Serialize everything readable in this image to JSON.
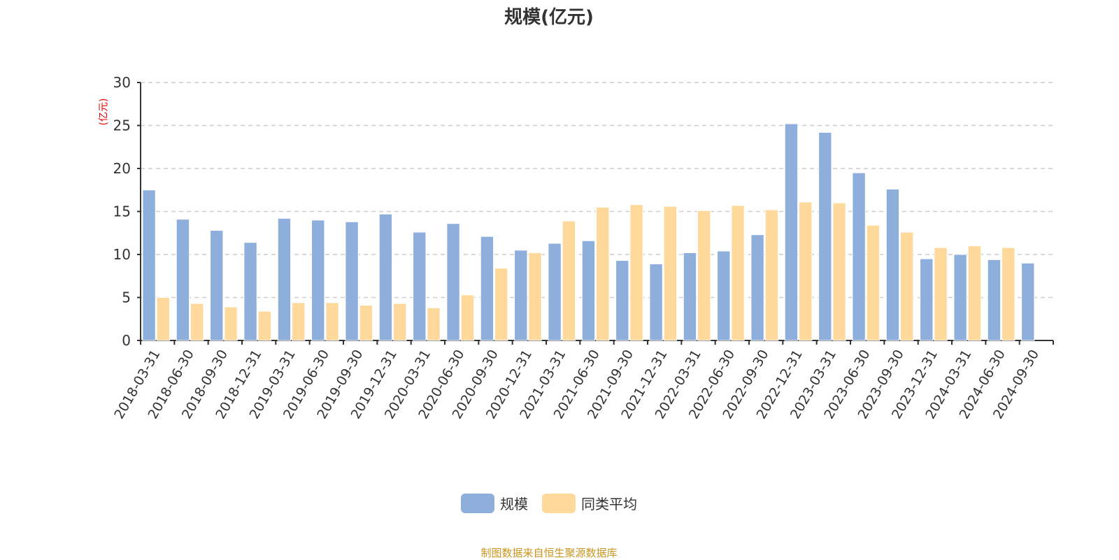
{
  "chart_data": {
    "type": "bar",
    "title": "规模(亿元)",
    "ylabel": "(亿元)",
    "ylim": [
      0,
      30
    ],
    "yticks": [
      0,
      5,
      10,
      15,
      20,
      25,
      30
    ],
    "grid": true,
    "legend_position": "bottom",
    "categories": [
      "2018-03-31",
      "2018-06-30",
      "2018-09-30",
      "2018-12-31",
      "2019-03-31",
      "2019-06-30",
      "2019-09-30",
      "2019-12-31",
      "2020-03-31",
      "2020-06-30",
      "2020-09-30",
      "2020-12-31",
      "2021-03-31",
      "2021-06-30",
      "2021-09-30",
      "2021-12-31",
      "2022-03-31",
      "2022-06-30",
      "2022-09-30",
      "2022-12-31",
      "2023-03-31",
      "2023-06-30",
      "2023-09-30",
      "2023-12-31",
      "2024-03-31",
      "2024-06-30",
      "2024-09-30"
    ],
    "series": [
      {
        "name": "规模",
        "color": "#8eaedb",
        "values": [
          17.5,
          14.1,
          12.8,
          11.4,
          14.2,
          14.0,
          13.8,
          14.7,
          12.6,
          13.6,
          12.1,
          10.5,
          11.3,
          11.6,
          9.3,
          8.9,
          10.2,
          10.4,
          12.3,
          25.2,
          24.2,
          19.5,
          17.6,
          9.5,
          10.0,
          9.4,
          9.0
        ]
      },
      {
        "name": "同类平均",
        "color": "#fed99b",
        "values": [
          5.0,
          4.3,
          3.9,
          3.4,
          4.4,
          4.4,
          4.1,
          4.3,
          3.8,
          5.3,
          8.4,
          10.2,
          13.9,
          15.5,
          15.8,
          15.6,
          15.1,
          15.7,
          15.2,
          16.1,
          16.0,
          13.4,
          12.6,
          10.8,
          11.0,
          10.8,
          null
        ]
      }
    ]
  },
  "source": "制图数据来自恒生聚源数据库"
}
